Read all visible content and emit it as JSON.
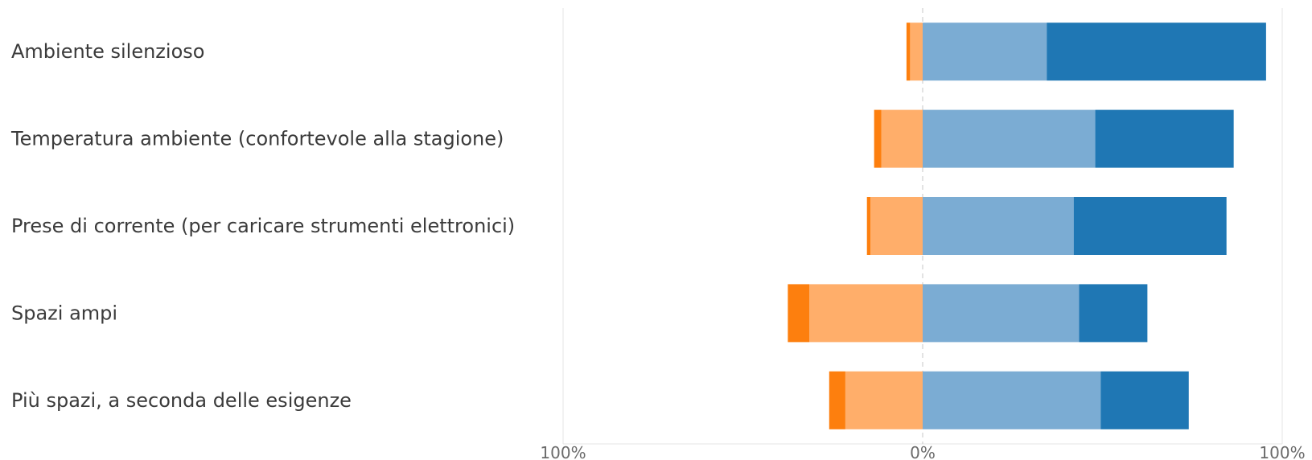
{
  "chart_data": {
    "type": "bar",
    "orientation": "horizontal",
    "stacked": "diverging",
    "categories": [
      "Ambiente silenzioso",
      "Temperatura ambiente (confortevole alla stagione)",
      "Prese di corrente (per caricare strumenti elettronici)",
      "Spazi ampi",
      "Più spazi, a seconda delle esigenze"
    ],
    "series": [
      {
        "color": "#fd7f0e",
        "values": [
          -1,
          -2,
          -1,
          -6,
          -4.5
        ]
      },
      {
        "color": "#ffae6a",
        "values": [
          -3.5,
          -11.5,
          -14.5,
          -31.5,
          -21.5
        ]
      },
      {
        "color": "#7bacd3",
        "values": [
          34.5,
          48,
          42,
          43.5,
          49.5
        ]
      },
      {
        "color": "#1f77b4",
        "values": [
          61,
          38.5,
          42.5,
          19,
          24.5
        ]
      }
    ],
    "xlim": [
      -100,
      100
    ],
    "x_ticks": [
      "100%",
      "0%",
      "100%"
    ],
    "grid": true,
    "legend": "none"
  }
}
